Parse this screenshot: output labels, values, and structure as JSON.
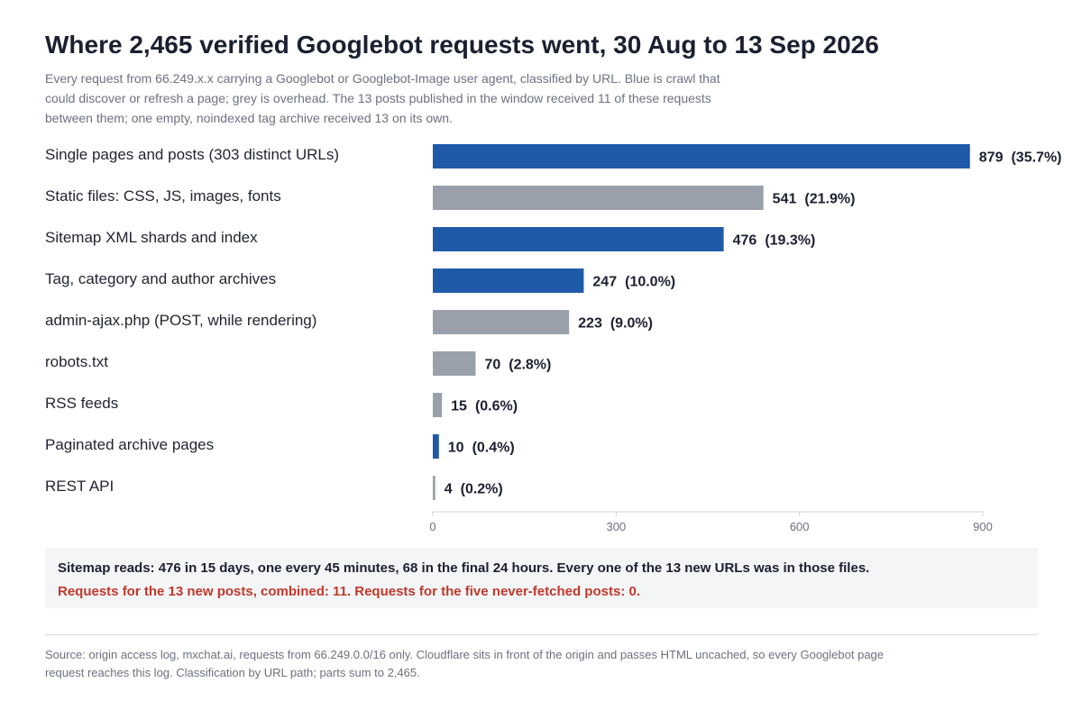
{
  "header": {
    "title": "Where 2,465 verified Googlebot requests went, 30 Aug to 13 Sep 2026",
    "subtitle": "Every request from 66.249.x.x carrying a Googlebot or Googlebot-Image user agent, classified by URL. Blue is crawl that could discover or refresh a page; grey is overhead. The 13 posts published in the window received 11 of these requests between them; one empty, noindexed tag archive received 13 on its own."
  },
  "colors": {
    "crawl": "#1f5aa8",
    "overhead": "#9aa0aa",
    "alert": "#c0392b"
  },
  "chart_data": {
    "type": "bar",
    "orientation": "horizontal",
    "categories": [
      "Single pages and posts (303 distinct URLs)",
      "Static files: CSS, JS, images, fonts",
      "Sitemap XML shards and index",
      "Tag, category and author archives",
      "admin-ajax.php (POST, while rendering)",
      "robots.txt",
      "RSS feeds",
      "Paginated archive pages",
      "REST API"
    ],
    "values": [
      879,
      541,
      476,
      247,
      223,
      70,
      15,
      10,
      4
    ],
    "value_labels": [
      "879",
      "541",
      "476",
      "247",
      "223",
      "70",
      "15",
      "10",
      "4"
    ],
    "percent_labels": [
      "(35.7%)",
      "(21.9%)",
      "(19.3%)",
      "(10.0%)",
      "(9.0%)",
      "(2.8%)",
      "(0.6%)",
      "(0.4%)",
      "(0.2%)"
    ],
    "kinds": [
      "crawl",
      "overhead",
      "crawl",
      "crawl",
      "overhead",
      "overhead",
      "overhead",
      "crawl",
      "overhead"
    ],
    "xlim": [
      0,
      900
    ],
    "xticks": [
      0,
      300,
      600,
      900
    ],
    "xtick_labels": [
      "0",
      "300",
      "600",
      "900"
    ],
    "grid": false,
    "legend": "none"
  },
  "callout": {
    "line1": "Sitemap reads: 476 in 15 days, one every 45 minutes, 68 in the final 24 hours. Every one of the 13 new URLs was in those files.",
    "line2": "Requests for the 13 new posts, combined: 11. Requests for the five never-fetched posts: 0."
  },
  "footer": {
    "source": "Source: origin access log, mxchat.ai, requests from 66.249.0.0/16 only. Cloudflare sits in front of the origin and passes HTML uncached, so every Googlebot page request reaches this log. Classification by URL path; parts sum to 2,465."
  }
}
